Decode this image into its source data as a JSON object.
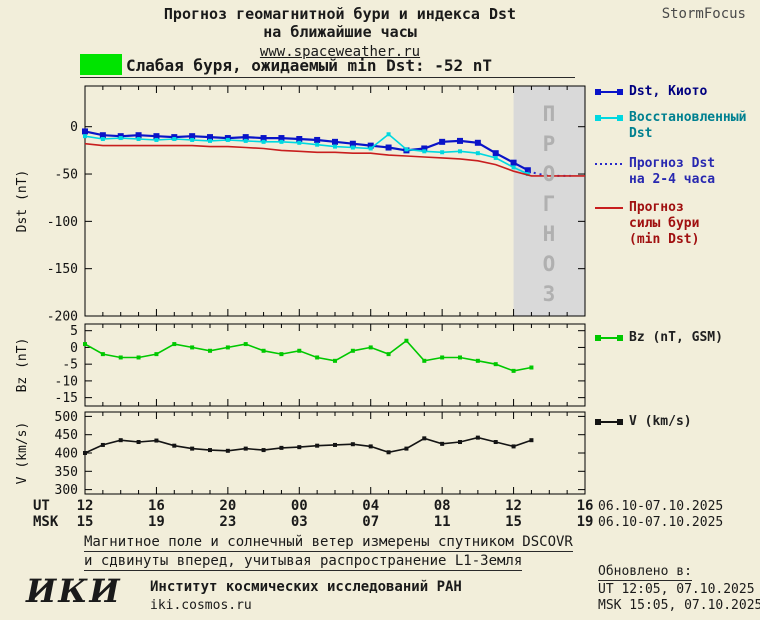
{
  "header": {
    "title_line1": "Прогноз геомагнитной бури и индекса Dst",
    "title_line2": "на ближайшие часы",
    "site_link": "www.spaceweather.ru",
    "brand": "StormFocus"
  },
  "alert": {
    "severity_color": "#00e400",
    "text": "Слабая буря, ожидаемый min Dst: -52 nT"
  },
  "forecast_band": {
    "label": "ПРОГНОЗ",
    "fill": "#d9d9d9",
    "label_color": "#b0b0b0"
  },
  "legend": {
    "items": [
      {
        "id": "dst-kyoto",
        "lines": [
          "Dst, Киото"
        ],
        "color": "#0a14c8",
        "text_color": "#000080",
        "marker": true,
        "style": "solid"
      },
      {
        "id": "recon-dst",
        "lines": [
          "Восстановленный",
          "Dst"
        ],
        "color": "#00d8e0",
        "text_color": "#008090",
        "marker": true,
        "style": "solid"
      },
      {
        "id": "forecast-dst",
        "lines": [
          "Прогноз Dst",
          "на 2-4 часа"
        ],
        "color": "#2828c8",
        "text_color": "#2828b0",
        "marker": false,
        "style": "dotted"
      },
      {
        "id": "forecast-storm",
        "lines": [
          "Прогноз",
          "силы бури",
          "(min Dst)"
        ],
        "color": "#c81e1e",
        "text_color": "#a01010",
        "marker": false,
        "style": "solid"
      },
      {
        "id": "bz",
        "lines": [
          "Bz (nT, GSM)"
        ],
        "color": "#00c800",
        "text_color": "#202020",
        "marker": true,
        "style": "solid"
      },
      {
        "id": "v",
        "lines": [
          "V (km/s)"
        ],
        "color": "#141414",
        "text_color": "#202020",
        "marker": true,
        "style": "solid"
      }
    ]
  },
  "xaxis": {
    "ut_label": "UT",
    "msk_label": "MSK",
    "ut_ticks": [
      "12",
      "16",
      "20",
      "00",
      "04",
      "08",
      "12",
      "16"
    ],
    "msk_ticks": [
      "15",
      "19",
      "23",
      "03",
      "07",
      "11",
      "15",
      "19"
    ],
    "date_range_ut": "06.10-07.10.2025",
    "date_range_msk": "06.10-07.10.2025"
  },
  "chart_data": [
    {
      "id": "dst",
      "type": "line",
      "title": "Прогноз геомагнитной бури и индекса Dst на ближайшие часы",
      "ylabel": "Dst (nT)",
      "ylim": [
        -200,
        43
      ],
      "yticks": [
        0,
        -50,
        -100,
        -150,
        -200
      ],
      "xlim": [
        0,
        28
      ],
      "x_unit": "hours since 12:00 UT 06.10.2025",
      "forecast_band_x": [
        24,
        28
      ],
      "series": [
        {
          "name": "Dst, Киото",
          "color": "#0a14c8",
          "marker": "square",
          "marker_size": 6,
          "width": 2.2,
          "x": [
            0,
            1,
            2,
            3,
            4,
            5,
            6,
            7,
            8,
            9,
            10,
            11,
            12,
            13,
            14,
            15,
            16,
            17,
            18,
            19,
            20,
            21,
            22,
            23,
            24,
            24.8
          ],
          "values": [
            -5,
            -9,
            -10,
            -9,
            -10,
            -11,
            -10,
            -11,
            -12,
            -11,
            -12,
            -12,
            -13,
            -14,
            -16,
            -18,
            -20,
            -22,
            -25,
            -23,
            -16,
            -15,
            -17,
            -28,
            -38,
            -46
          ]
        },
        {
          "name": "Восстановленный Dst",
          "color": "#00d8e0",
          "marker": "square",
          "marker_size": 4,
          "width": 1.6,
          "x": [
            0,
            1,
            2,
            3,
            4,
            5,
            6,
            7,
            8,
            9,
            10,
            11,
            12,
            13,
            14,
            15,
            16,
            17,
            18,
            19,
            20,
            21,
            22,
            23,
            24,
            24.8
          ],
          "values": [
            -10,
            -13,
            -12,
            -13,
            -14,
            -13,
            -14,
            -15,
            -14,
            -15,
            -16,
            -16,
            -17,
            -19,
            -21,
            -22,
            -23,
            -8,
            -24,
            -26,
            -27,
            -26,
            -28,
            -33,
            -43,
            -50
          ]
        },
        {
          "name": "Прогноз Dst на 2-4 часа",
          "color": "#2828c8",
          "style": "dotted",
          "width": 2,
          "x": [
            24.8,
            25.4,
            26,
            26.6,
            27.2
          ],
          "values": [
            -47,
            -50,
            -52,
            -52,
            -52
          ]
        },
        {
          "name": "Прогноз силы бури (min Dst)",
          "color": "#c81e1e",
          "width": 1.6,
          "x": [
            0,
            1,
            2,
            3,
            4,
            5,
            6,
            7,
            8,
            9,
            10,
            11,
            12,
            13,
            14,
            15,
            16,
            17,
            18,
            19,
            20,
            21,
            22,
            23,
            24,
            25,
            26,
            27,
            28
          ],
          "values": [
            -18,
            -20,
            -20,
            -20,
            -20,
            -20,
            -20,
            -21,
            -21,
            -22,
            -23,
            -25,
            -26,
            -27,
            -27,
            -28,
            -28,
            -30,
            -31,
            -32,
            -33,
            -34,
            -36,
            -40,
            -47,
            -52,
            -52,
            -52,
            -52
          ]
        }
      ]
    },
    {
      "id": "bz",
      "type": "line",
      "ylabel": "Bz (nT)",
      "ylim": [
        -17.5,
        7
      ],
      "yticks": [
        5,
        0,
        -5,
        -10,
        -15
      ],
      "xlim": [
        0,
        28
      ],
      "series": [
        {
          "name": "Bz (nT, GSM)",
          "color": "#00c800",
          "marker": "square",
          "marker_size": 4,
          "width": 1.6,
          "x": [
            0,
            1,
            2,
            3,
            4,
            5,
            6,
            7,
            8,
            9,
            10,
            11,
            12,
            13,
            14,
            15,
            16,
            17,
            18,
            19,
            20,
            21,
            22,
            23,
            24,
            25
          ],
          "values": [
            1,
            -2,
            -3,
            -3,
            -2,
            1,
            0,
            -1,
            0,
            1,
            -1,
            -2,
            -1,
            -3,
            -4,
            -1,
            0,
            -2,
            2,
            -4,
            -3,
            -3,
            -4,
            -5,
            -7,
            -6
          ]
        }
      ]
    },
    {
      "id": "v",
      "type": "line",
      "ylabel": "V (km/s)",
      "ylim": [
        288,
        512
      ],
      "yticks": [
        500,
        450,
        400,
        350,
        300
      ],
      "xlim": [
        0,
        28
      ],
      "series": [
        {
          "name": "V (km/s)",
          "color": "#141414",
          "marker": "square",
          "marker_size": 4,
          "width": 1.6,
          "x": [
            0,
            1,
            2,
            3,
            4,
            5,
            6,
            7,
            8,
            9,
            10,
            11,
            12,
            13,
            14,
            15,
            16,
            17,
            18,
            19,
            20,
            21,
            22,
            23,
            24,
            25
          ],
          "values": [
            400,
            422,
            435,
            430,
            434,
            420,
            412,
            408,
            406,
            412,
            408,
            414,
            416,
            420,
            422,
            424,
            418,
            402,
            412,
            440,
            425,
            430,
            442,
            430,
            418,
            435
          ]
        }
      ]
    }
  ],
  "footnotes": {
    "line1": "Магнитное поле и солнечный ветер измерены спутником DSCOVR",
    "line2": "и сдвинуты вперед, учитывая распространение L1-Земля"
  },
  "updated": {
    "label": "Обновлено в:",
    "ut": "UT  12:05, 07.10.2025",
    "msk": "MSK 15:05, 07.10.2025"
  },
  "footer": {
    "logo": "ИКИ",
    "institute": "Институт космических исследований РАН",
    "site": "iki.cosmos.ru"
  }
}
